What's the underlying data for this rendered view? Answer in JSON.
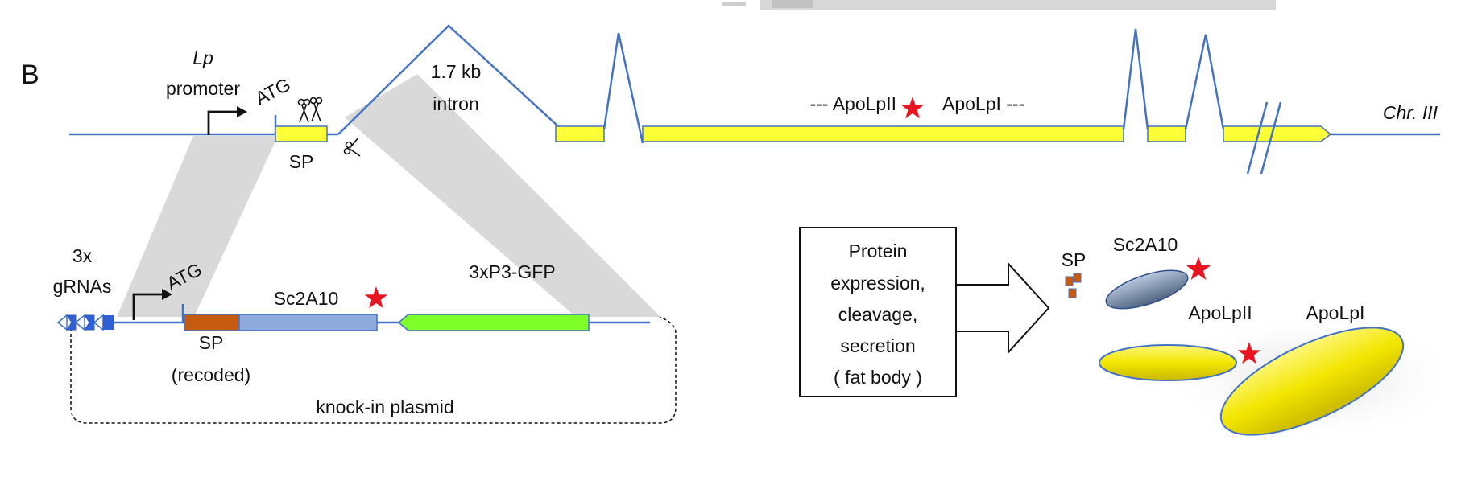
{
  "panel_label": "B",
  "top": {
    "promoter_name": "Lp",
    "promoter_word": "promoter",
    "start_codon": "ATG",
    "signal_peptide": "SP",
    "intron_size": "1.7 kb",
    "intron_word": "intron",
    "protein_left": "--- ApoLpII",
    "protein_right": "ApoLpI ---",
    "chromosome": "Chr. III"
  },
  "plasmid": {
    "grna_count": "3x",
    "grna_word": "gRNAs",
    "start_codon": "ATG",
    "tag_name": "Sc2A10",
    "marker_name": "3xP3-GFP",
    "signal_peptide": "SP",
    "recoded_note": "(recoded)",
    "plasmid_name": "knock-in plasmid"
  },
  "process_box": {
    "lines": [
      "Protein",
      "expression,",
      "cleavage,",
      "secretion",
      "( fat body )"
    ]
  },
  "products": {
    "sp_label": "SP",
    "tag_label": "Sc2A10",
    "apolpii_label": "ApoLpII",
    "apolpi_label": "ApoLpI"
  },
  "colors": {
    "dna_line": "#4472c4",
    "exon_yellow": "#ffff38",
    "sp_orange": "#c55a11",
    "tag_blue": "#8faadc",
    "gfp_green": "#7fff2a",
    "homology_gray": "#d9d9d9",
    "star_red": "#e8141f"
  }
}
